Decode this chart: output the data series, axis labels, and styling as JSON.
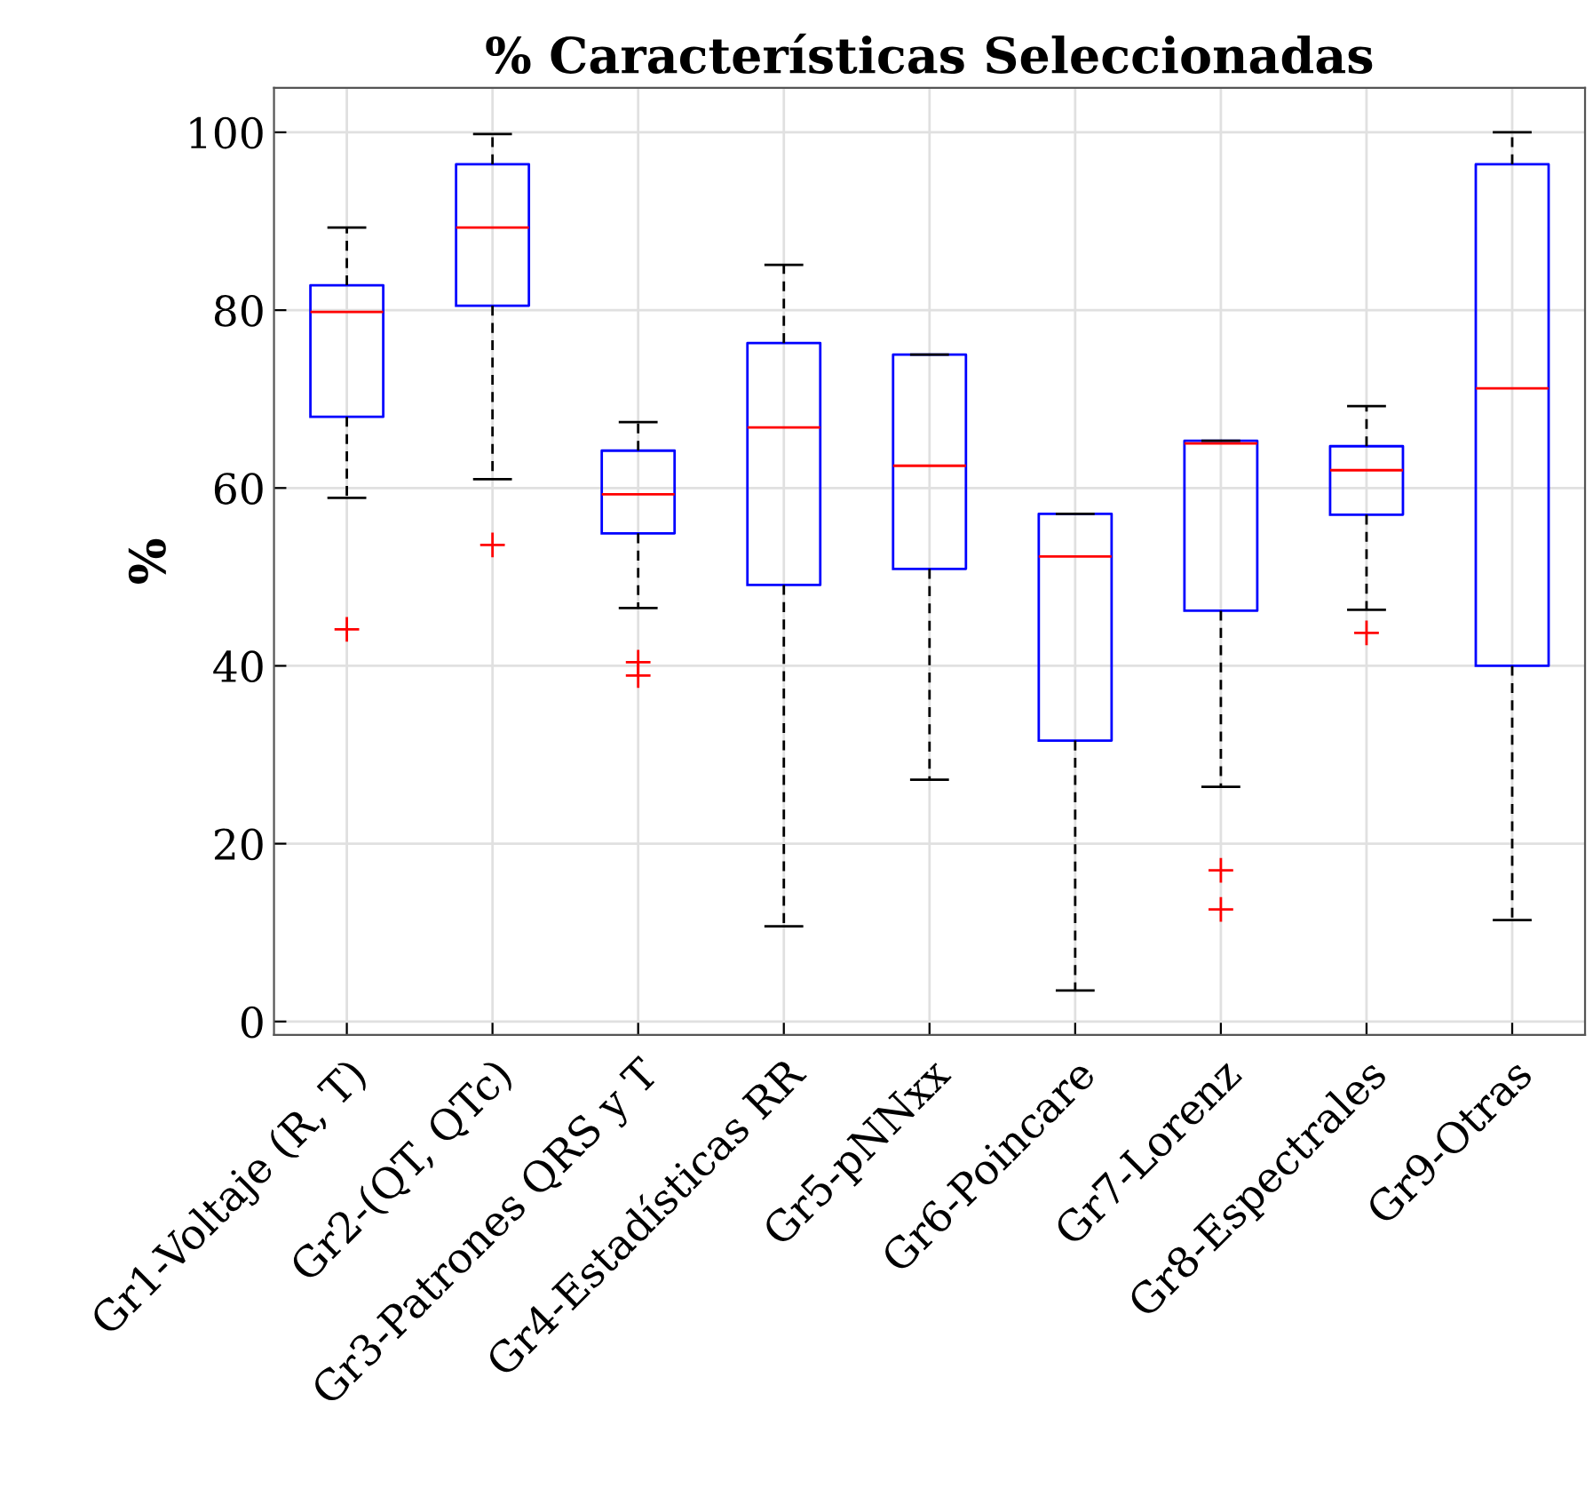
{
  "chart_data": {
    "type": "box",
    "title": "% Características Seleccionadas",
    "ylabel": "%",
    "categories": [
      "Gr1-Voltaje (R, T)",
      "Gr2-(QT, QTc)",
      "Gr3-Patrones QRS y T",
      "Gr4-Estadísticas RR",
      "Gr5-pNNxx",
      "Gr6-Poincare",
      "Gr7-Lorenz",
      "Gr8-Espectrales",
      "Gr9-Otras"
    ],
    "color": "#0000ff",
    "boxes": [
      {
        "low": 58.9,
        "q1": 68.0,
        "median": 79.8,
        "q3": 82.8,
        "high": 89.3,
        "outliers": [
          44.1
        ]
      },
      {
        "low": 61.0,
        "q1": 80.5,
        "median": 89.3,
        "q3": 96.4,
        "high": 99.8,
        "outliers": [
          53.6
        ]
      },
      {
        "low": 46.5,
        "q1": 54.9,
        "median": 59.3,
        "q3": 64.2,
        "high": 67.4,
        "outliers": [
          40.4,
          38.9
        ]
      },
      {
        "low": 10.7,
        "q1": 49.1,
        "median": 66.8,
        "q3": 76.3,
        "high": 85.1
      },
      {
        "low": 27.2,
        "q1": 50.9,
        "median": 62.5,
        "q3": 75.0,
        "high": 75.0
      },
      {
        "low": 3.5,
        "q1": 31.6,
        "median": 52.3,
        "q3": 57.1,
        "high": 57.1
      },
      {
        "low": 26.4,
        "q1": 46.2,
        "median": 65.0,
        "q3": 65.3,
        "high": 65.3,
        "outliers": [
          17.0,
          12.6
        ]
      },
      {
        "low": 46.3,
        "q1": 57.0,
        "median": 62.0,
        "q3": 64.7,
        "high": 69.2,
        "outliers": [
          43.7
        ]
      },
      {
        "low": 11.4,
        "q1": 40.0,
        "median": 71.2,
        "q3": 96.4,
        "high": 100
      }
    ],
    "ylim": [
      -1.5,
      105
    ],
    "yticks": [
      0,
      20,
      40,
      60,
      80,
      100
    ],
    "grid": true,
    "marker": "cross"
  }
}
